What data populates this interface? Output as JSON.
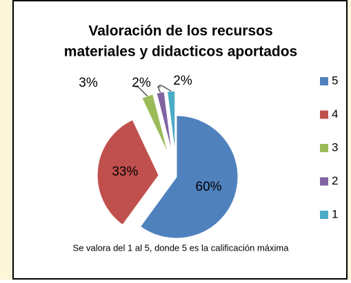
{
  "chart_data": {
    "type": "pie",
    "title": [
      "Valoración de los recursos",
      "materiales y didacticos aportados"
    ],
    "categories": [
      "5",
      "4",
      "3",
      "2",
      "1"
    ],
    "values": [
      60,
      33,
      3,
      2,
      2
    ],
    "value_labels": [
      "60%",
      "33%",
      "3%",
      "2%",
      "2%"
    ],
    "colors": [
      "#4f81bd",
      "#c0504d",
      "#9bbb59",
      "#8064a2",
      "#4bacc6"
    ],
    "legend": "right",
    "note": "Se valora del 1 al 5, donde 5 es la calificación máxima"
  }
}
